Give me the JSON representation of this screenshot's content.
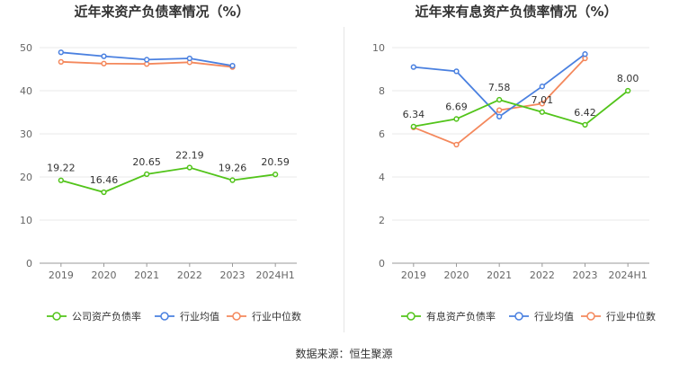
{
  "source": "数据来源：恒生聚源",
  "chart_data": [
    {
      "type": "line",
      "title": "近年来资产负债率情况（%）",
      "categories": [
        "2019",
        "2020",
        "2021",
        "2022",
        "2023",
        "2024H1"
      ],
      "ylim": [
        0,
        50
      ],
      "yticks": [
        0,
        10,
        20,
        30,
        40,
        50
      ],
      "series": [
        {
          "name": "公司资产负债率",
          "color": "#52c41a",
          "values": [
            19.22,
            16.46,
            20.65,
            22.19,
            19.26,
            20.59
          ],
          "labels": true
        },
        {
          "name": "行业均值",
          "color": "#4a80e0",
          "values": [
            48.9,
            48.0,
            47.2,
            47.5,
            45.8,
            null
          ],
          "labels": false
        },
        {
          "name": "行业中位数",
          "color": "#f4885c",
          "values": [
            46.7,
            46.3,
            46.2,
            46.6,
            45.5,
            null
          ],
          "labels": false
        }
      ]
    },
    {
      "type": "line",
      "title": "近年来有息资产负债率情况（%）",
      "categories": [
        "2019",
        "2020",
        "2021",
        "2022",
        "2023",
        "2024H1"
      ],
      "ylim": [
        0,
        10
      ],
      "yticks": [
        0,
        2,
        4,
        6,
        8,
        10
      ],
      "series": [
        {
          "name": "有息资产负债率",
          "color": "#52c41a",
          "values": [
            6.34,
            6.69,
            7.58,
            7.01,
            6.42,
            8.0
          ],
          "labels": true
        },
        {
          "name": "行业均值",
          "color": "#4a80e0",
          "values": [
            9.1,
            8.9,
            6.8,
            8.2,
            9.7,
            null
          ],
          "labels": false
        },
        {
          "name": "行业中位数",
          "color": "#f4885c",
          "values": [
            6.3,
            5.5,
            7.1,
            7.4,
            9.5,
            null
          ],
          "labels": false
        }
      ]
    }
  ]
}
